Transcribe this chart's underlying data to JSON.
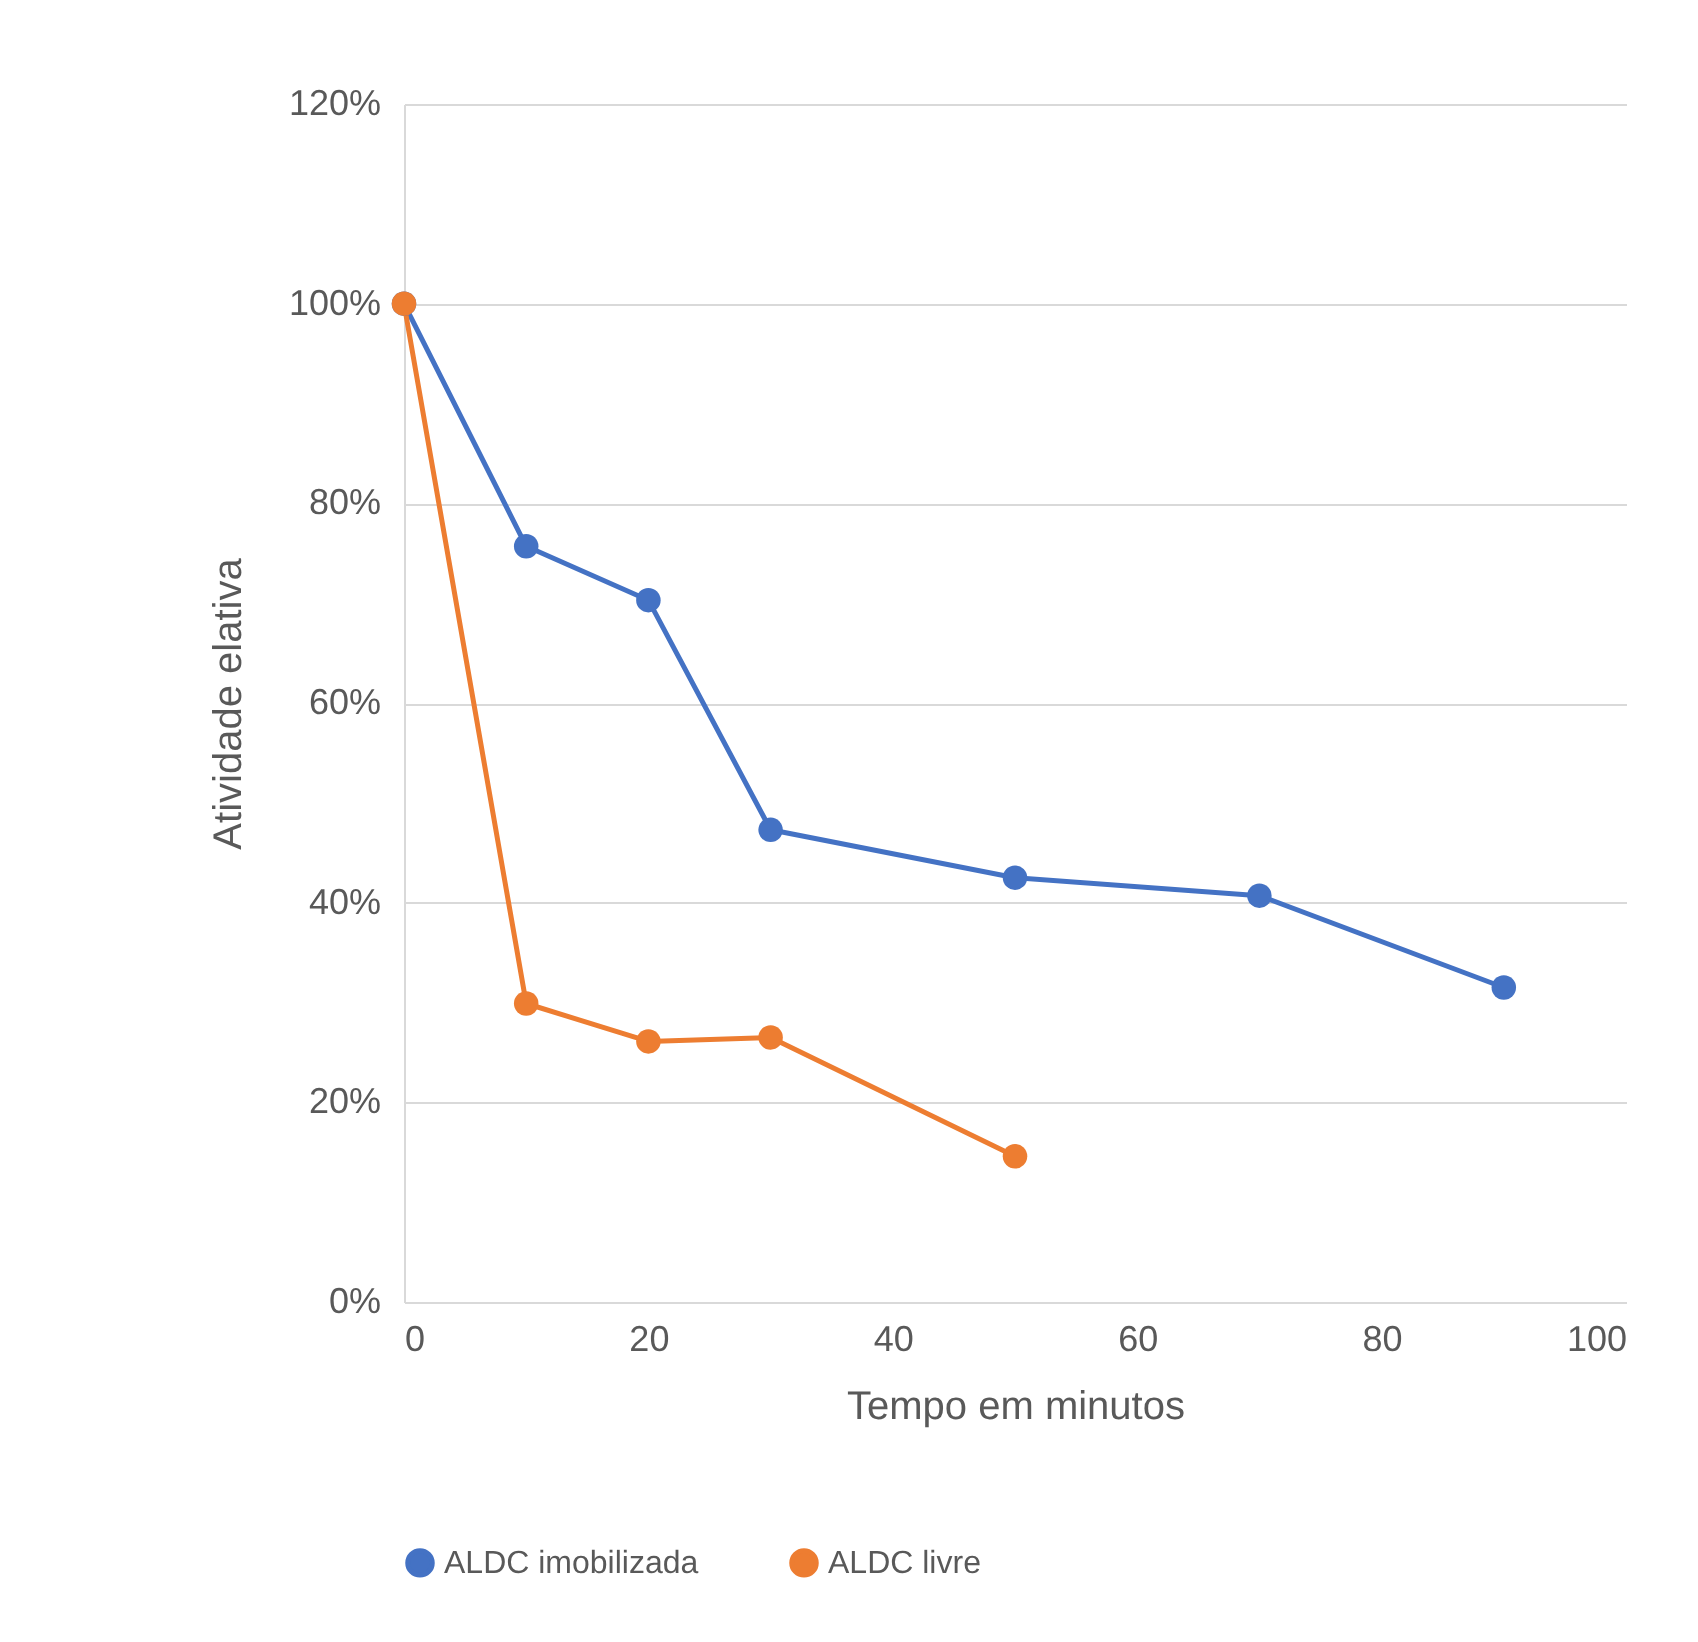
{
  "chart_data": {
    "type": "line",
    "xlabel": "Tempo em minutos",
    "ylabel": "Atividade elativa",
    "series": [
      {
        "name": "ALDC imobilizada",
        "color": "#4472c4",
        "x": [
          0,
          10,
          20,
          30,
          50,
          70,
          90
        ],
        "values": [
          100,
          75.7,
          70.3,
          47.3,
          42.5,
          40.7,
          31.5
        ]
      },
      {
        "name": "ALDC livre",
        "color": "#ed7d31",
        "x": [
          0,
          10,
          20,
          30,
          50
        ],
        "values": [
          100,
          29.9,
          26.1,
          26.5,
          14.6
        ]
      }
    ],
    "xlim": [
      0,
      100
    ],
    "xticks": [
      0,
      20,
      40,
      60,
      80,
      100
    ],
    "ylim": [
      0,
      120
    ],
    "yticks": [
      {
        "value": 0,
        "label": "0%"
      },
      {
        "value": 20,
        "label": "20%"
      },
      {
        "value": 40,
        "label": "40%"
      },
      {
        "value": 60,
        "label": "60%"
      },
      {
        "value": 80,
        "label": "80%"
      },
      {
        "value": 100,
        "label": "100%"
      },
      {
        "value": 120,
        "label": "120%"
      }
    ],
    "grid": "y",
    "legend": "bottom",
    "marker": "circle"
  }
}
